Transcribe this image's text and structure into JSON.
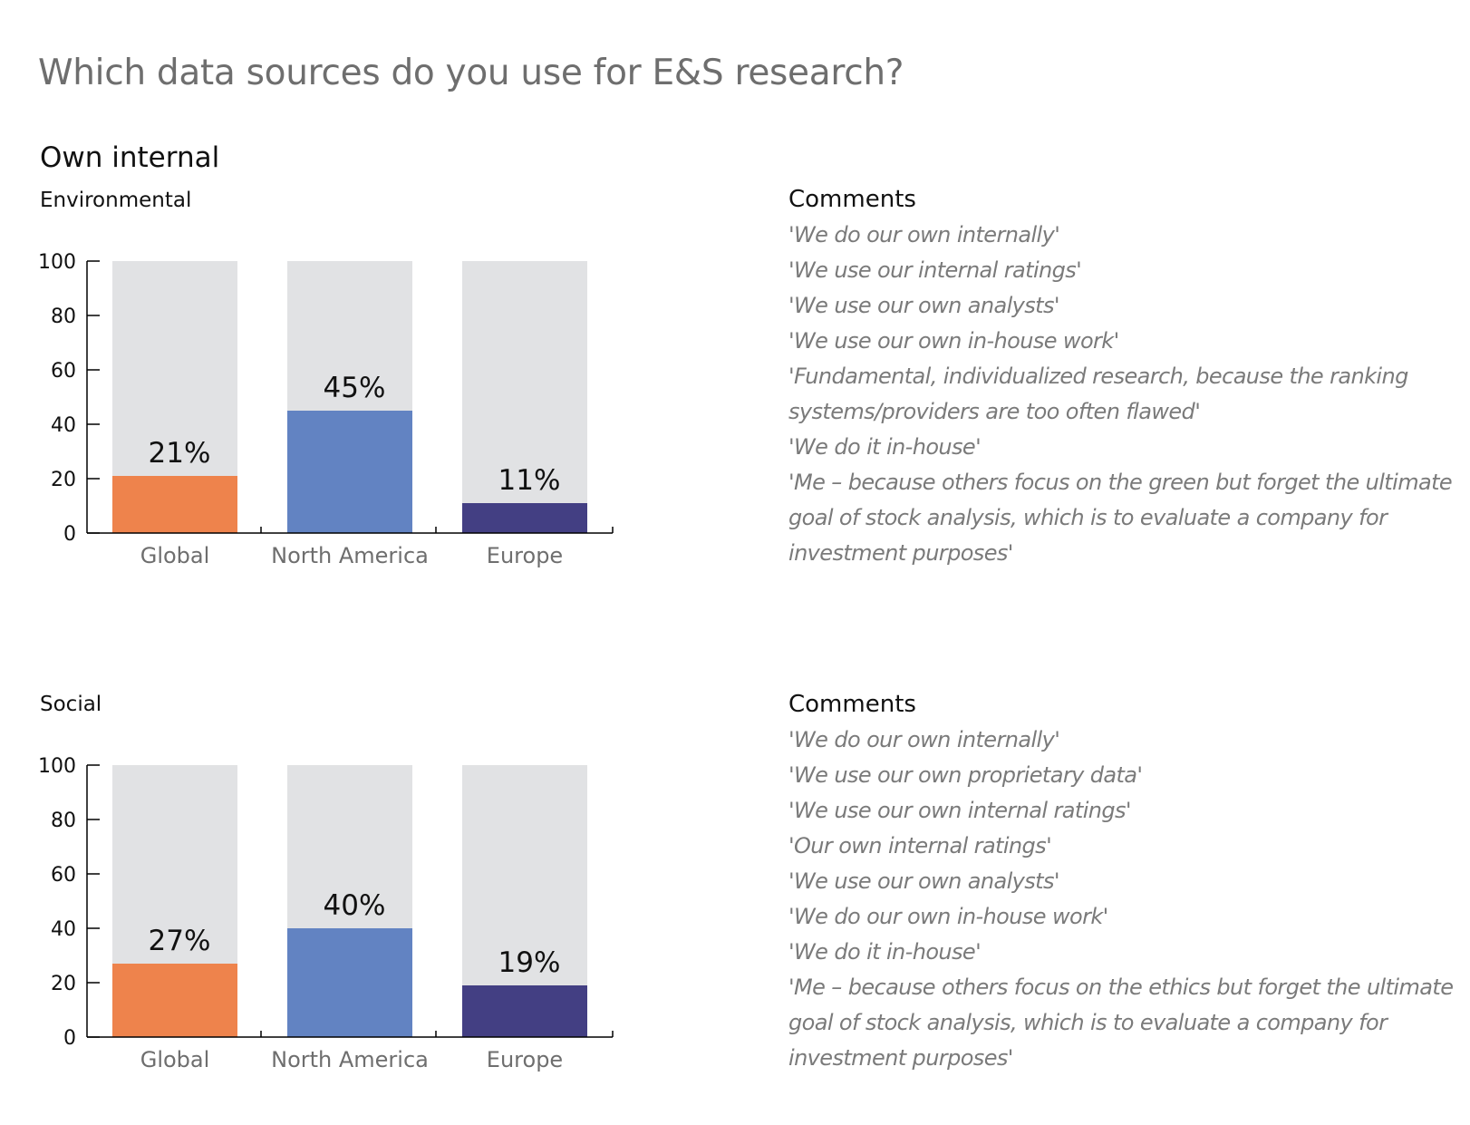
{
  "page": {
    "title": "Which data sources do you use for E&S research?",
    "section_title": "Own internal"
  },
  "colors": {
    "background_bar": "#e1e2e4",
    "axis": "#000000",
    "category_label": "#6e6e6e"
  },
  "chart_data": [
    {
      "type": "bar",
      "title": "Environmental",
      "categories": [
        "Global",
        "North America",
        "Europe"
      ],
      "values": [
        21,
        45,
        11
      ],
      "value_labels": [
        "21%",
        "45%",
        "11%"
      ],
      "bar_colors": [
        "#ee834c",
        "#6283c2",
        "#433f83"
      ],
      "ylim": [
        0,
        100
      ],
      "yticks": [
        0,
        20,
        40,
        60,
        80,
        100
      ],
      "grid": false,
      "legend": "none"
    },
    {
      "type": "bar",
      "title": "Social",
      "categories": [
        "Global",
        "North America",
        "Europe"
      ],
      "values": [
        27,
        40,
        19
      ],
      "value_labels": [
        "27%",
        "40%",
        "19%"
      ],
      "bar_colors": [
        "#ee834c",
        "#6283c2",
        "#433f83"
      ],
      "ylim": [
        0,
        100
      ],
      "yticks": [
        0,
        20,
        40,
        60,
        80,
        100
      ],
      "grid": false,
      "legend": "none"
    }
  ],
  "comments": [
    {
      "heading": "Comments",
      "items": [
        "'We do our own internally'",
        "'We use our internal ratings'",
        "'We use our own analysts'",
        "'We use our own in-house work'",
        "'Fundamental, individualized research, because the ranking systems/providers are too often flawed'",
        "'We do it in-house'",
        "'Me – because others focus on the green but forget the ultimate goal of stock analysis, which is to evaluate a company for investment purposes'"
      ]
    },
    {
      "heading": "Comments",
      "items": [
        "'We do our own internally'",
        "'We use our own proprietary data'",
        "'We use our own internal ratings'",
        "'Our own internal ratings'",
        "'We use our own analysts'",
        "'We do our own in-house work'",
        "'We do it in-house'",
        "'Me – because others focus on the ethics but forget the ultimate goal of stock analysis, which is to evaluate a company for investment purposes'"
      ]
    }
  ]
}
